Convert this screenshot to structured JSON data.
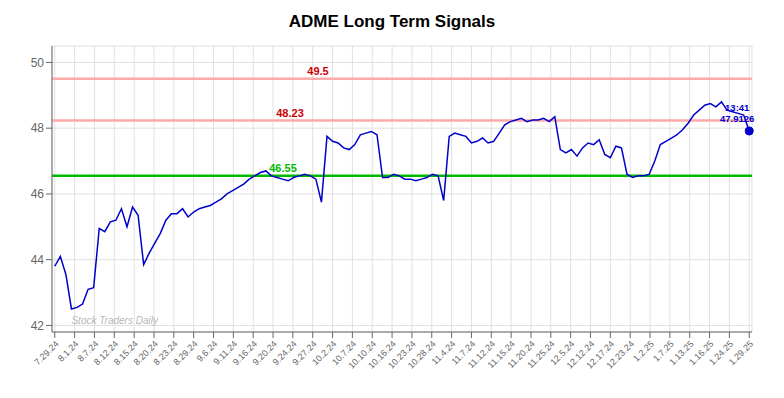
{
  "chart_data": {
    "type": "line",
    "title": "ADME Long Term Signals",
    "color": "#0000cc",
    "grid": true,
    "x": [
      0,
      1,
      2,
      3,
      4,
      5,
      6,
      7,
      8,
      9,
      10,
      11,
      12,
      13,
      14,
      15,
      16,
      17,
      18,
      19,
      20,
      21,
      22,
      23,
      24,
      25,
      26,
      27,
      28,
      29,
      30,
      31,
      32,
      33,
      34,
      35,
      36,
      37,
      38,
      39,
      40,
      41,
      42,
      43,
      44,
      45,
      46,
      47,
      48,
      49,
      50,
      51,
      52,
      53,
      54,
      55,
      56,
      57,
      58,
      59,
      60,
      61,
      62,
      63,
      64,
      65,
      66,
      67,
      68,
      69,
      70,
      71,
      72,
      73,
      74,
      75,
      76,
      77,
      78,
      79,
      80,
      81,
      82,
      83,
      84,
      85,
      86,
      87,
      88,
      89,
      90,
      91,
      92,
      93,
      94,
      95,
      96,
      97,
      98,
      99,
      100,
      101,
      102,
      103,
      104,
      105,
      106,
      107,
      108,
      109,
      110,
      111,
      112,
      113,
      114,
      115,
      116,
      117,
      118,
      119,
      120,
      121,
      122,
      123,
      124,
      125
    ],
    "values": [
      43.8,
      44.1,
      43.55,
      42.5,
      42.55,
      42.65,
      43.1,
      43.15,
      44.95,
      44.85,
      45.15,
      45.2,
      45.55,
      45.0,
      45.6,
      45.35,
      43.85,
      44.2,
      44.5,
      44.8,
      45.2,
      45.4,
      45.4,
      45.55,
      45.3,
      45.45,
      45.55,
      45.6,
      45.65,
      45.75,
      45.85,
      46.0,
      46.1,
      46.2,
      46.3,
      46.45,
      46.55,
      46.65,
      46.7,
      46.55,
      46.5,
      46.45,
      46.4,
      46.5,
      46.55,
      46.6,
      46.55,
      46.45,
      45.75,
      47.75,
      47.6,
      47.55,
      47.4,
      47.35,
      47.5,
      47.8,
      47.85,
      47.9,
      47.8,
      46.5,
      46.5,
      46.6,
      46.55,
      46.45,
      46.45,
      46.4,
      46.45,
      46.5,
      46.6,
      46.55,
      45.8,
      47.75,
      47.85,
      47.8,
      47.75,
      47.55,
      47.6,
      47.7,
      47.55,
      47.6,
      47.85,
      48.1,
      48.2,
      48.25,
      48.3,
      48.2,
      48.25,
      48.25,
      48.3,
      48.2,
      48.35,
      47.35,
      47.25,
      47.35,
      47.15,
      47.4,
      47.55,
      47.5,
      47.65,
      47.2,
      47.1,
      47.45,
      47.4,
      46.6,
      46.5,
      46.55,
      46.55,
      46.6,
      47.0,
      47.5,
      47.6,
      47.7,
      47.8,
      47.95,
      48.15,
      48.4,
      48.55,
      48.7,
      48.75,
      48.65,
      48.8,
      48.55,
      48.5,
      48.45,
      48.4,
      47.9126
    ],
    "xlim": [
      -0.5,
      125.5
    ],
    "xticks": [
      {
        "value": 0,
        "label": "7.29.24"
      },
      {
        "value": 3.5714285714,
        "label": "8.1.24"
      },
      {
        "value": 7.1428571429,
        "label": "8.7.24"
      },
      {
        "value": 10.7142857143,
        "label": "8.12.24"
      },
      {
        "value": 14.2857142857,
        "label": "8.15.24"
      },
      {
        "value": 17.8571428571,
        "label": "8.20.24"
      },
      {
        "value": 21.4285714286,
        "label": "8.23.24"
      },
      {
        "value": 25,
        "label": "8.29.24"
      },
      {
        "value": 28.5714285714,
        "label": "9.6.24"
      },
      {
        "value": 32.1428571429,
        "label": "9.11.24"
      },
      {
        "value": 35.7142857143,
        "label": "9.16.24"
      },
      {
        "value": 39.2857142857,
        "label": "9.20.24"
      },
      {
        "value": 42.8571428571,
        "label": "9.24.24"
      },
      {
        "value": 46.4285714286,
        "label": "9.27.24"
      },
      {
        "value": 50,
        "label": "10.2.24"
      },
      {
        "value": 53.5714285714,
        "label": "10.7.24"
      },
      {
        "value": 57.1428571429,
        "label": "10.10.24"
      },
      {
        "value": 60.7142857143,
        "label": "10.16.24"
      },
      {
        "value": 64.2857142857,
        "label": "10.23.24"
      },
      {
        "value": 67.8571428571,
        "label": "10.28.24"
      },
      {
        "value": 71.4285714286,
        "label": "11.4.24"
      },
      {
        "value": 75,
        "label": "11.7.24"
      },
      {
        "value": 78.5714285714,
        "label": "11.12.24"
      },
      {
        "value": 82.1428571429,
        "label": "11.15.24"
      },
      {
        "value": 85.7142857143,
        "label": "11.20.24"
      },
      {
        "value": 89.2857142857,
        "label": "11.25.24"
      },
      {
        "value": 92.8571428571,
        "label": "12.5.24"
      },
      {
        "value": 96.4285714286,
        "label": "12.12.24"
      },
      {
        "value": 100,
        "label": "12.17.24"
      },
      {
        "value": 103.5714285714,
        "label": "12.23.24"
      },
      {
        "value": 107.1428571429,
        "label": "1.2.25"
      },
      {
        "value": 110.7142857143,
        "label": "1.7.25"
      },
      {
        "value": 114.2857142857,
        "label": "1.13.25"
      },
      {
        "value": 117.8571428571,
        "label": "1.16.25"
      },
      {
        "value": 121.4285714286,
        "label": "1.24.25"
      },
      {
        "value": 125,
        "label": "1.29.25"
      }
    ],
    "ylim": [
      41.8,
      50.5
    ],
    "yticks": [
      42,
      44,
      46,
      48,
      50
    ],
    "reference_lines": [
      {
        "y": 49.5,
        "label": "49.5",
        "color": "#ffaaaa",
        "label_color": "#cc0000"
      },
      {
        "y": 48.23,
        "label": "48.23",
        "color": "#ffaaaa",
        "label_color": "#cc0000"
      },
      {
        "y": 46.55,
        "label": "46.55",
        "color": "#00bb00",
        "label_color": "#00bb00"
      }
    ],
    "annotations": [
      {
        "text": "13:41\n47.9126",
        "x": 125,
        "y": 47.9126,
        "marker": "circle"
      },
      {
        "text": "Stock Traders Daily",
        "x": 3,
        "y": 42.05
      }
    ]
  }
}
